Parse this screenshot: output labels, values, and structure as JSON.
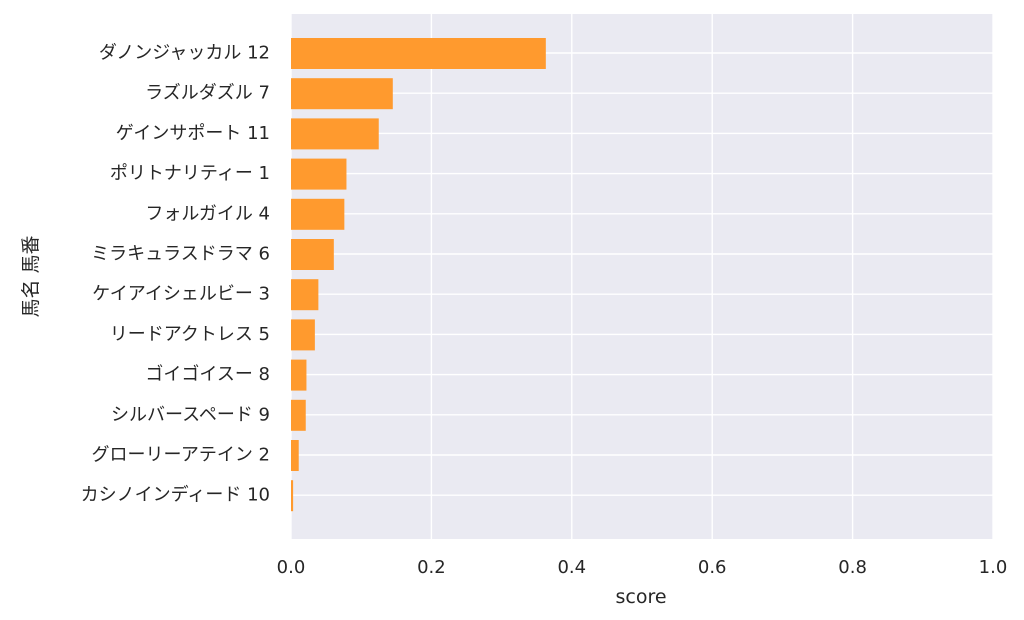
{
  "chart_data": {
    "type": "bar",
    "orientation": "horizontal",
    "categories": [
      "ダノンジャッカル 12",
      "ラズルダズル 7",
      "ゲインサポート 11",
      "ポリトナリティー 1",
      "フォルガイル 4",
      "ミラキュラスドラマ 6",
      "ケイアイシェルビー 3",
      "リードアクトレス 5",
      "ゴイゴイスー 8",
      "シルバースペード 9",
      "グローリーアテイン 2",
      "カシノインディード 10"
    ],
    "values": [
      0.363,
      0.145,
      0.125,
      0.079,
      0.076,
      0.061,
      0.039,
      0.034,
      0.022,
      0.021,
      0.011,
      0.003
    ],
    "xlabel": "score",
    "ylabel": "馬名 馬番",
    "xlim": [
      0.0,
      1.0
    ],
    "xticks": [
      "0.0",
      "0.2",
      "0.4",
      "0.6",
      "0.8",
      "1.0"
    ],
    "grid": true,
    "colors": {
      "bar": "#ff9a2e",
      "plot_background": "#eaeaf2",
      "grid": "#ffffff"
    }
  }
}
